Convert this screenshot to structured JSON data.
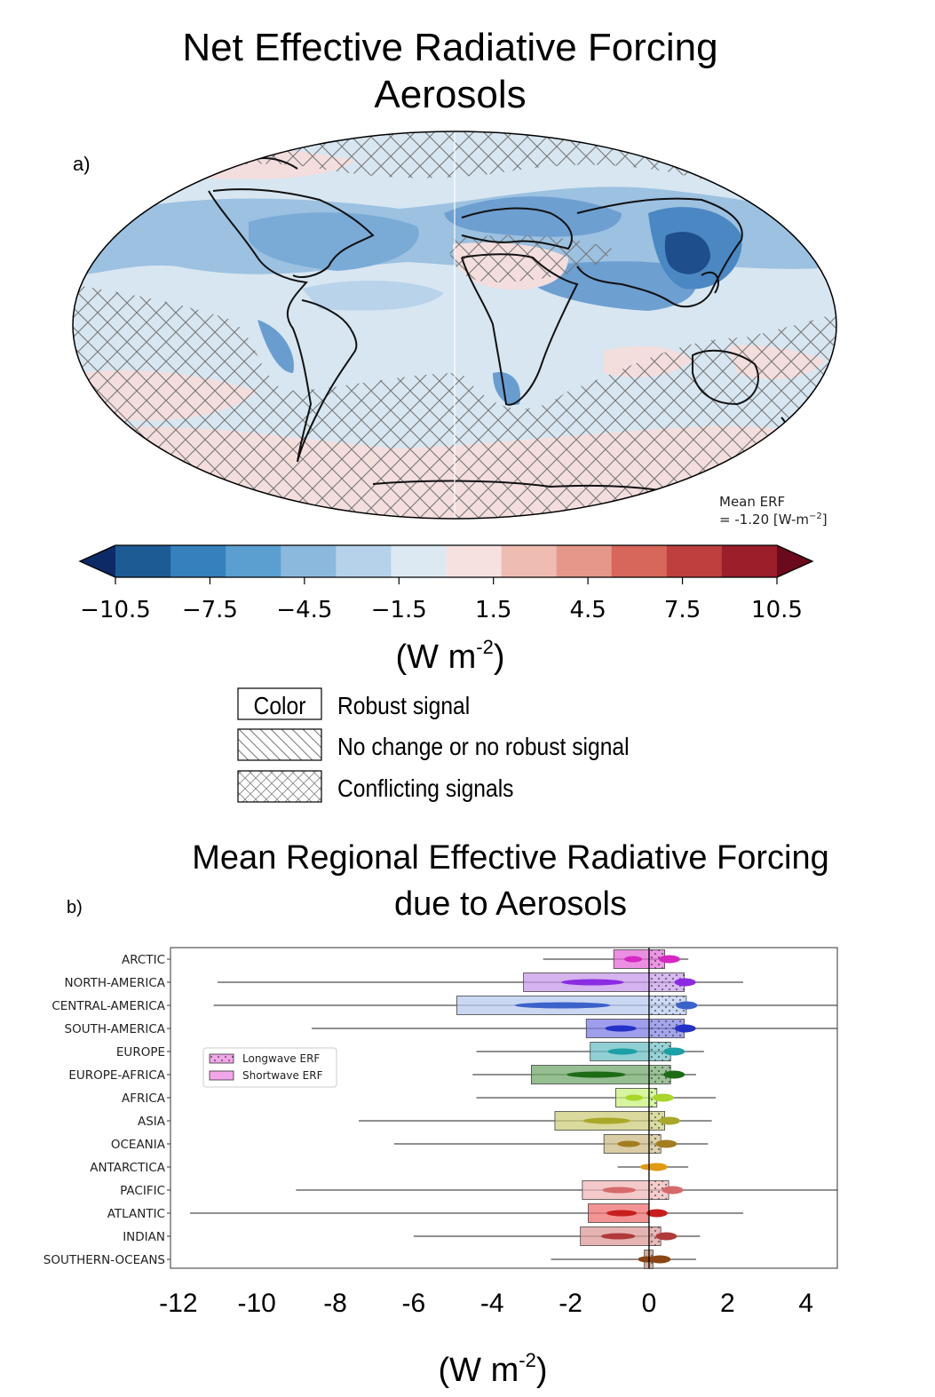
{
  "panel_a": {
    "title_line1": "Net Effective Radiative Forcing",
    "title_line2": "Aerosols",
    "panel_label": "a)",
    "mean_label_line1": "Mean ERF",
    "mean_label_line2": "= -1.20 [W-m",
    "mean_label_exp": "−2",
    "mean_label_end": "]",
    "colorbar": {
      "ticks": [
        "−10.5",
        "−7.5",
        "−4.5",
        "−1.5",
        "1.5",
        "4.5",
        "7.5",
        "10.5"
      ],
      "colors": [
        "#0d2a66",
        "#1d5b94",
        "#3580bd",
        "#5a9fd0",
        "#8ab9dd",
        "#b5d2ea",
        "#dce9f3",
        "#f7e1df",
        "#efbcb2",
        "#e5978a",
        "#d6675a",
        "#be3f3d",
        "#9b1e2a",
        "#6b0a1c"
      ],
      "unit_base": "(W m",
      "unit_exp": "-2",
      "unit_end": ")"
    },
    "legend": [
      {
        "swatch": "Color",
        "label": "Robust signal",
        "pattern": "none"
      },
      {
        "swatch": "",
        "label": "No change or no robust signal",
        "pattern": "diagonal"
      },
      {
        "swatch": "",
        "label": "Conflicting signals",
        "pattern": "cross"
      }
    ]
  },
  "chart_data": [
    {
      "type": "heatmap",
      "title": "Net Effective Radiative Forcing Aerosols",
      "colorbar_range": [
        -10.5,
        10.5
      ],
      "colorbar_unit": "(W m-2)",
      "mean_erf": -1.2
    },
    {
      "type": "bar",
      "title_line1": "Mean Regional Effective Radiative Forcing",
      "title_line2": "due to Aerosols",
      "panel_label": "b)",
      "xlabel_base": "(W m",
      "xlabel_exp": "-2",
      "xlabel_end": ")",
      "xlim": [
        -12.2,
        4.8
      ],
      "xticks": [
        {
          "label": "-12",
          "value": -12
        },
        {
          "label": "-10",
          "value": -10
        },
        {
          "label": "-8",
          "value": -8
        },
        {
          "label": "-6",
          "value": -6
        },
        {
          "label": "-4",
          "value": -4
        },
        {
          "label": "-2",
          "value": -2
        },
        {
          "label": "0",
          "value": 0
        },
        {
          "label": "2",
          "value": 2
        },
        {
          "label": "4",
          "value": 4
        }
      ],
      "legend": [
        {
          "name": "Longwave ERF",
          "hatch": "dots"
        },
        {
          "name": "Shortwave ERF",
          "hatch": "none"
        }
      ],
      "categories": [
        "ARCTIC",
        "NORTH-AMERICA",
        "CENTRAL-AMERICA",
        "SOUTH-AMERICA",
        "EUROPE",
        "EUROPE-AFRICA",
        "AFRICA",
        "ASIA",
        "OCEANIA",
        "ANTARCTICA",
        "PACIFIC",
        "ATLANTIC",
        "INDIAN",
        "SOUTHERN-OCEANS"
      ],
      "colors": [
        "#e36ad8",
        "#c69ae8",
        "#b7c9ef",
        "#7d7ee5",
        "#6bbfc4",
        "#72a86c",
        "#c9f27f",
        "#cccd7a",
        "#cdbb86",
        "#e3a736",
        "#f0b7b7",
        "#f06f70",
        "#dd9a9a",
        "#c5927b"
      ],
      "violin_colors": [
        "#d628c3",
        "#8a2be2",
        "#3a62c9",
        "#2432c8",
        "#1c9fa5",
        "#1e6b16",
        "#a8d62a",
        "#aaa82a",
        "#a27d1f",
        "#e09a14",
        "#d66a6a",
        "#c61e1e",
        "#b03a3a",
        "#8b4513"
      ],
      "series": [
        {
          "name": "Shortwave ERF",
          "values": [
            -0.9,
            -3.2,
            -4.9,
            -1.6,
            -1.5,
            -3.0,
            -0.85,
            -2.4,
            -1.15,
            0.0,
            -1.7,
            -1.55,
            -1.75,
            -0.12
          ]
        },
        {
          "name": "Longwave ERF",
          "values": [
            0.4,
            0.9,
            0.95,
            0.9,
            0.55,
            0.55,
            0.2,
            0.4,
            0.3,
            0.0,
            0.5,
            0.0,
            0.3,
            0.1
          ]
        }
      ],
      "whisker_ranges": [
        [
          -2.7,
          1.0
        ],
        [
          -11.0,
          2.4
        ],
        [
          -11.1,
          4.8
        ],
        [
          -8.6,
          4.8
        ],
        [
          -4.4,
          1.4
        ],
        [
          -4.5,
          1.2
        ],
        [
          -4.4,
          1.7
        ],
        [
          -7.4,
          1.6
        ],
        [
          -6.5,
          1.5
        ],
        [
          -0.8,
          1.0
        ],
        [
          -9.0,
          4.8
        ],
        [
          -11.7,
          2.4
        ],
        [
          -6.0,
          1.3
        ],
        [
          -2.5,
          1.2
        ]
      ]
    }
  ]
}
